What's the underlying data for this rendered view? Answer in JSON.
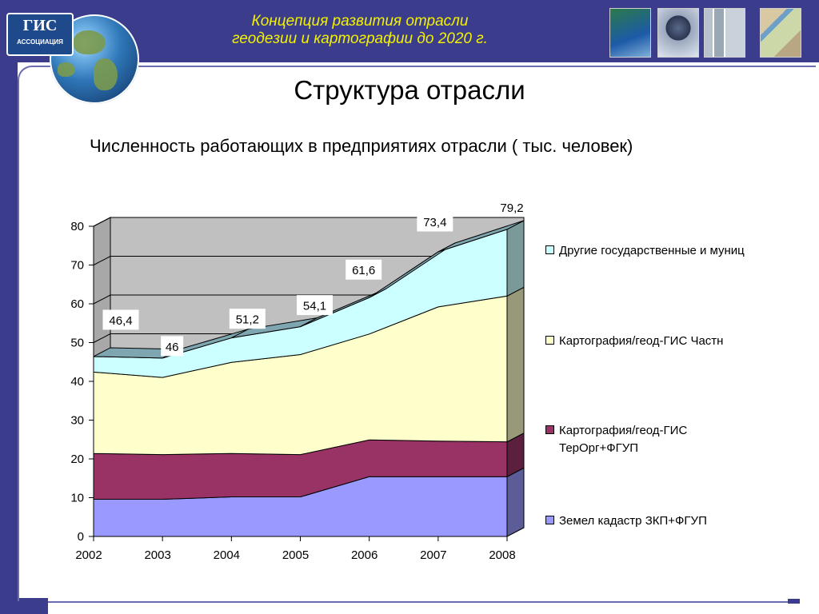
{
  "header": {
    "title_line1": "Концепция развития отрасли",
    "title_line2": "геодезии и картографии до 2020 г.",
    "logo_mark": "ГИС",
    "logo_sub": "АССОЦИАЦИЯ"
  },
  "slide": {
    "title": "Структура отрасли",
    "chart_heading": "Численность работающих в предприятиях отрасли ( тыс. человек)"
  },
  "colors": {
    "header_bg": "#3c3c8c",
    "header_text": "#f2f200",
    "wall": "#c0c0c0",
    "series": [
      "#9999ff",
      "#993366",
      "#ffffcc",
      "#ccffff"
    ]
  },
  "chart_data": {
    "type": "area",
    "stacked": true,
    "three_d": true,
    "x": [
      "2002",
      "2003",
      "2004",
      "2005",
      "2006",
      "2007",
      "2008"
    ],
    "ylim": [
      0,
      80
    ],
    "yticks": [
      0,
      10,
      20,
      30,
      40,
      50,
      60,
      70,
      80
    ],
    "grid": true,
    "legend_position": "right",
    "series": [
      {
        "name": "Земел кадастр ЗКП+ФГУП",
        "values": [
          9.6,
          9.6,
          10.2,
          10.2,
          15.4,
          15.4,
          15.4
        ]
      },
      {
        "name": "Картография/геод-ГИС ТерОрг+ФГУП",
        "values": [
          11.8,
          11.5,
          11.2,
          10.9,
          9.5,
          9.2,
          9.0
        ]
      },
      {
        "name": "Картография/геод-ГИС Частн",
        "values": [
          21.0,
          19.9,
          23.5,
          25.8,
          27.3,
          34.6,
          37.6
        ]
      },
      {
        "name": "Другие государственные и муниц",
        "values": [
          4.0,
          5.0,
          6.3,
          7.2,
          9.4,
          14.2,
          17.2
        ]
      }
    ],
    "total_labels": [
      "46,4",
      "46",
      "51,2",
      "54,1",
      "61,6",
      "73,4",
      "79,2"
    ]
  }
}
